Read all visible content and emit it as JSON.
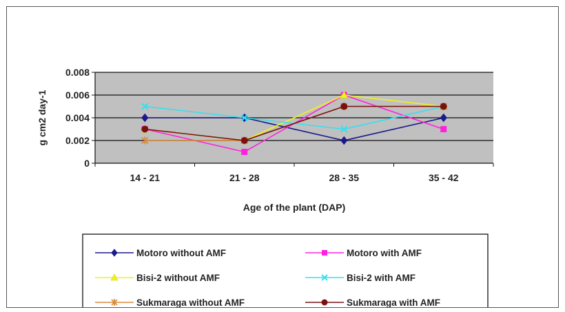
{
  "chart_data": {
    "type": "line",
    "title": "",
    "xlabel": "Age of the plant (DAP)",
    "ylabel": "g cm2 day-1",
    "categories": [
      "14 - 21",
      "21 - 28",
      "28 - 35",
      "35 - 42"
    ],
    "ylim": [
      0,
      0.008
    ],
    "yticks": [
      "0",
      "0.002",
      "0.004",
      "0.006",
      "0.008"
    ],
    "ytick_values": [
      0,
      0.002,
      0.004,
      0.006,
      0.008
    ],
    "grid": true,
    "legend": "bottom",
    "series": [
      {
        "name": "Motoro without AMF",
        "values": [
          0.004,
          0.004,
          0.002,
          0.004
        ],
        "color": "#1a1a8c",
        "marker": "diamond"
      },
      {
        "name": "Motoro with AMF",
        "values": [
          0.003,
          0.001,
          0.006,
          0.003
        ],
        "color": "#ff22dd",
        "marker": "square"
      },
      {
        "name": "Bisi-2 without AMF",
        "values": [
          0.003,
          0.002,
          0.006,
          0.005
        ],
        "color": "#f2f21a",
        "marker": "triangle"
      },
      {
        "name": "Bisi-2 with AMF",
        "values": [
          0.005,
          0.004,
          0.003,
          0.005
        ],
        "color": "#33e0f0",
        "marker": "x"
      },
      {
        "name": "Sukmaraga without AMF",
        "values": [
          0.002,
          0.002,
          0.005,
          0.005
        ],
        "color": "#d88a3a",
        "marker": "star"
      },
      {
        "name": "Sukmaraga with AMF",
        "values": [
          0.003,
          0.002,
          0.005,
          0.005
        ],
        "color": "#7a1010",
        "marker": "circle"
      }
    ]
  }
}
